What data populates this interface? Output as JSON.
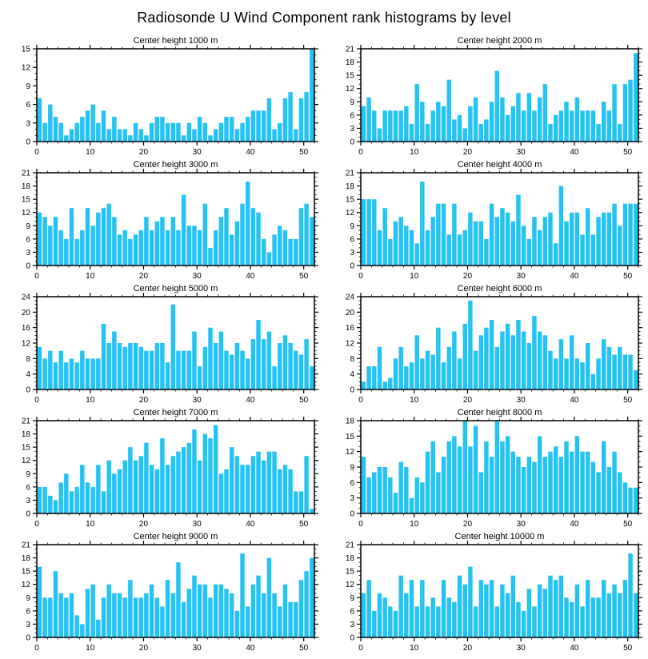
{
  "page_title": "Radiosonde U Wind Component rank histograms by level",
  "colors": {
    "bar": "#28C2F2",
    "axis": "#000000",
    "background": "#FFFFFF"
  },
  "chart_data": [
    {
      "type": "bar",
      "title": "Center height 1000 m",
      "xlabel": "",
      "ylabel": "",
      "xlim": [
        0,
        52
      ],
      "ylim": [
        0,
        15
      ],
      "ytick_step": 3,
      "xticks": [
        0,
        10,
        20,
        30,
        40,
        50
      ],
      "grid": false,
      "values": [
        7,
        3,
        6,
        4,
        3,
        1,
        2,
        3,
        4,
        5,
        6,
        3,
        5,
        2,
        4,
        2,
        2,
        1,
        3,
        2,
        1,
        3,
        4,
        4,
        3,
        3,
        3,
        1,
        3,
        2,
        4,
        3,
        1,
        2,
        3,
        4,
        4,
        2,
        3,
        4,
        5,
        5,
        5,
        7,
        2,
        3,
        7,
        8,
        2,
        7,
        8,
        15
      ]
    },
    {
      "type": "bar",
      "title": "Center height 2000 m",
      "xlabel": "",
      "ylabel": "",
      "xlim": [
        0,
        52
      ],
      "ylim": [
        0,
        21
      ],
      "ytick_step": 3,
      "xticks": [
        0,
        10,
        20,
        30,
        40,
        50
      ],
      "grid": false,
      "values": [
        8,
        10,
        7,
        3,
        7,
        7,
        7,
        7,
        8,
        4,
        13,
        9,
        4,
        7,
        9,
        8,
        14,
        5,
        6,
        3,
        8,
        10,
        4,
        5,
        9,
        16,
        10,
        6,
        8,
        11,
        7,
        11,
        7,
        10,
        13,
        4,
        6,
        7,
        9,
        7,
        10,
        7,
        7,
        7,
        4,
        9,
        7,
        13,
        4,
        13,
        14,
        20
      ]
    },
    {
      "type": "bar",
      "title": "Center height 3000 m",
      "xlabel": "",
      "ylabel": "",
      "xlim": [
        0,
        52
      ],
      "ylim": [
        0,
        21
      ],
      "ytick_step": 3,
      "xticks": [
        0,
        10,
        20,
        30,
        40,
        50
      ],
      "grid": false,
      "values": [
        12,
        11,
        9,
        11,
        8,
        6,
        13,
        6,
        8,
        13,
        9,
        12,
        13,
        14,
        11,
        7,
        8,
        6,
        7,
        8,
        11,
        8,
        10,
        11,
        8,
        11,
        8,
        16,
        9,
        9,
        8,
        14,
        4,
        8,
        11,
        13,
        7,
        10,
        14,
        19,
        13,
        12,
        6,
        3,
        7,
        9,
        8,
        6,
        6,
        13,
        14,
        11
      ]
    },
    {
      "type": "bar",
      "title": "Center height 4000 m",
      "xlabel": "",
      "ylabel": "",
      "xlim": [
        0,
        52
      ],
      "ylim": [
        0,
        21
      ],
      "ytick_step": 3,
      "xticks": [
        0,
        10,
        20,
        30,
        40,
        50
      ],
      "grid": false,
      "values": [
        15,
        15,
        15,
        8,
        13,
        6,
        10,
        11,
        9,
        8,
        5,
        19,
        8,
        11,
        14,
        14,
        7,
        14,
        7,
        8,
        12,
        10,
        10,
        6,
        14,
        11,
        13,
        12,
        10,
        16,
        9,
        6,
        11,
        8,
        11,
        12,
        5,
        18,
        10,
        12,
        12,
        7,
        13,
        7,
        11,
        12,
        12,
        14,
        9,
        14,
        14,
        14
      ]
    },
    {
      "type": "bar",
      "title": "Center height 5000 m",
      "xlabel": "",
      "ylabel": "",
      "xlim": [
        0,
        52
      ],
      "ylim": [
        0,
        24
      ],
      "ytick_step": 4,
      "xticks": [
        0,
        10,
        20,
        30,
        40,
        50
      ],
      "grid": false,
      "values": [
        11,
        8,
        10,
        7,
        10,
        7,
        8,
        7,
        10,
        8,
        8,
        8,
        17,
        12,
        15,
        12,
        11,
        12,
        12,
        11,
        10,
        10,
        12,
        12,
        7,
        22,
        10,
        10,
        10,
        15,
        6,
        11,
        16,
        12,
        15,
        10,
        9,
        12,
        10,
        8,
        13,
        18,
        13,
        15,
        6,
        12,
        14,
        12,
        10,
        9,
        13,
        6
      ]
    },
    {
      "type": "bar",
      "title": "Center height 6000 m",
      "xlabel": "",
      "ylabel": "",
      "xlim": [
        0,
        52
      ],
      "ylim": [
        0,
        24
      ],
      "ytick_step": 4,
      "xticks": [
        0,
        10,
        20,
        30,
        40,
        50
      ],
      "grid": false,
      "values": [
        2,
        6,
        6,
        11,
        2,
        3,
        8,
        11,
        6,
        7,
        14,
        8,
        10,
        9,
        16,
        7,
        11,
        15,
        8,
        17,
        23,
        10,
        14,
        16,
        18,
        11,
        15,
        17,
        14,
        18,
        15,
        12,
        19,
        15,
        14,
        10,
        8,
        13,
        8,
        14,
        8,
        7,
        12,
        4,
        8,
        13,
        11,
        9,
        11,
        9,
        9,
        5
      ]
    },
    {
      "type": "bar",
      "title": "Center height 7000 m",
      "xlabel": "",
      "ylabel": "",
      "xlim": [
        0,
        52
      ],
      "ylim": [
        0,
        21
      ],
      "ytick_step": 3,
      "xticks": [
        0,
        10,
        20,
        30,
        40,
        50
      ],
      "grid": false,
      "values": [
        6,
        6,
        4,
        3,
        7,
        9,
        5,
        6,
        11,
        7,
        6,
        11,
        5,
        12,
        9,
        10,
        12,
        15,
        12,
        13,
        16,
        11,
        10,
        17,
        11,
        13,
        14,
        15,
        16,
        19,
        12,
        18,
        17,
        20,
        9,
        10,
        15,
        13,
        11,
        11,
        13,
        14,
        12,
        14,
        14,
        10,
        11,
        10,
        5,
        5,
        13,
        1
      ]
    },
    {
      "type": "bar",
      "title": "Center height 8000 m",
      "xlabel": "",
      "ylabel": "",
      "xlim": [
        0,
        52
      ],
      "ylim": [
        0,
        18
      ],
      "ytick_step": 3,
      "xticks": [
        0,
        10,
        20,
        30,
        40,
        50
      ],
      "grid": false,
      "values": [
        11,
        7,
        8,
        9,
        9,
        7,
        4,
        10,
        9,
        3,
        7,
        6,
        12,
        14,
        8,
        11,
        14,
        15,
        13,
        18,
        13,
        17,
        8,
        14,
        11,
        18,
        14,
        15,
        12,
        11,
        9,
        11,
        10,
        15,
        11,
        12,
        13,
        11,
        14,
        12,
        15,
        12,
        12,
        10,
        8,
        14,
        9,
        12,
        8,
        6,
        5,
        5
      ]
    },
    {
      "type": "bar",
      "title": "Center height 9000 m",
      "xlabel": "",
      "ylabel": "",
      "xlim": [
        0,
        52
      ],
      "ylim": [
        0,
        21
      ],
      "ytick_step": 3,
      "xticks": [
        0,
        10,
        20,
        30,
        40,
        50
      ],
      "grid": false,
      "values": [
        16,
        9,
        9,
        15,
        10,
        9,
        10,
        5,
        3,
        11,
        12,
        4,
        9,
        12,
        10,
        10,
        9,
        13,
        9,
        9,
        10,
        12,
        9,
        7,
        13,
        10,
        17,
        8,
        11,
        14,
        12,
        12,
        9,
        12,
        12,
        11,
        10,
        6,
        19,
        7,
        12,
        14,
        10,
        18,
        10,
        7,
        12,
        8,
        8,
        13,
        15,
        18
      ]
    },
    {
      "type": "bar",
      "title": "Center height 10000 m",
      "xlabel": "",
      "ylabel": "",
      "xlim": [
        0,
        52
      ],
      "ylim": [
        0,
        21
      ],
      "ytick_step": 3,
      "xticks": [
        0,
        10,
        20,
        30,
        40,
        50
      ],
      "grid": false,
      "values": [
        10,
        13,
        6,
        10,
        9,
        7,
        6,
        14,
        10,
        13,
        7,
        13,
        7,
        9,
        7,
        13,
        9,
        8,
        14,
        12,
        16,
        7,
        13,
        12,
        13,
        7,
        12,
        10,
        14,
        8,
        6,
        11,
        7,
        12,
        11,
        14,
        13,
        14,
        9,
        8,
        12,
        7,
        13,
        9,
        9,
        13,
        10,
        12,
        10,
        13,
        19,
        10
      ]
    }
  ]
}
